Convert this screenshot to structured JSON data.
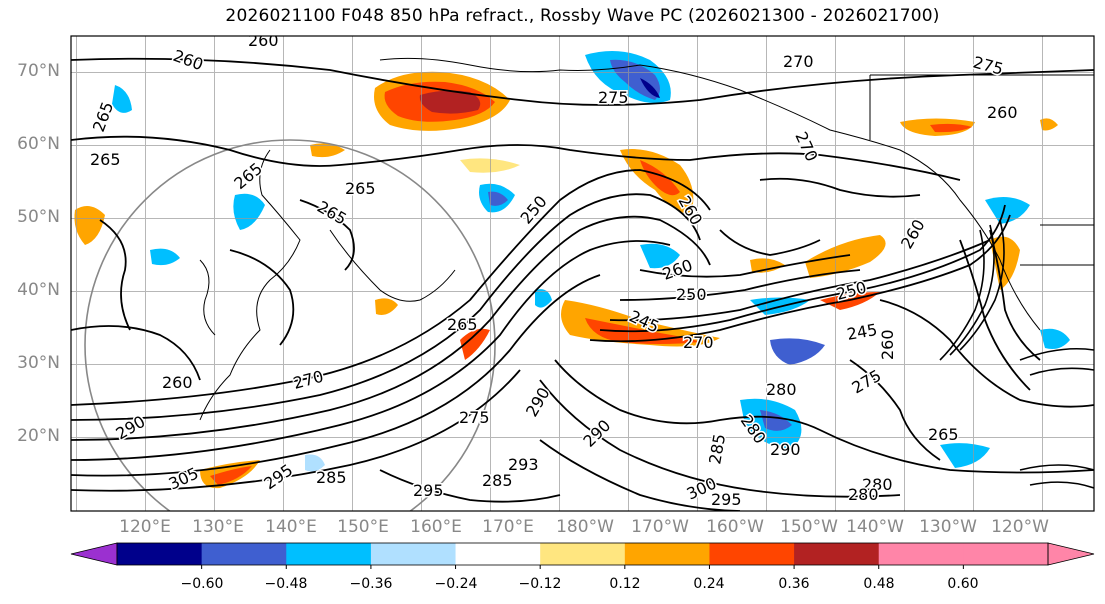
{
  "title": "2026021100 F048 850 hPa refract., Rossby Wave PC (2026021300 - 2026021700)",
  "lat_labels": [
    "70°N",
    "60°N",
    "50°N",
    "40°N",
    "30°N",
    "20°N"
  ],
  "lon_labels": [
    "120°E",
    "130°E",
    "140°E",
    "150°E",
    "160°E",
    "170°E",
    "180°W",
    "170°W",
    "160°W",
    "150°W",
    "140°W",
    "130°W",
    "120°W"
  ],
  "colorbar": {
    "ticks": [
      "−0.60",
      "−0.48",
      "−0.36",
      "−0.24",
      "−0.12",
      "0.12",
      "0.24",
      "0.36",
      "0.48",
      "0.60"
    ],
    "colors": [
      "#9b30d0",
      "#00008b",
      "#3f5fd0",
      "#00bfff",
      "#b0e0ff",
      "#ffffff",
      "#ffe680",
      "#ffa500",
      "#ff4500",
      "#b22222",
      "#ff85a8",
      "#ff85a8"
    ]
  },
  "contour_labels": [
    "260",
    "260",
    "270",
    "275",
    "260",
    "265",
    "265",
    "265",
    "265",
    "270",
    "265",
    "275",
    "280",
    "260",
    "250",
    "260",
    "245",
    "250",
    "270",
    "265",
    "250",
    "245",
    "260",
    "260",
    "275",
    "270",
    "275",
    "280",
    "285",
    "290",
    "290",
    "300",
    "295",
    "295",
    "293",
    "290",
    "285",
    "280",
    "280",
    "265",
    "260",
    "305",
    "290",
    "295",
    "285"
  ]
}
